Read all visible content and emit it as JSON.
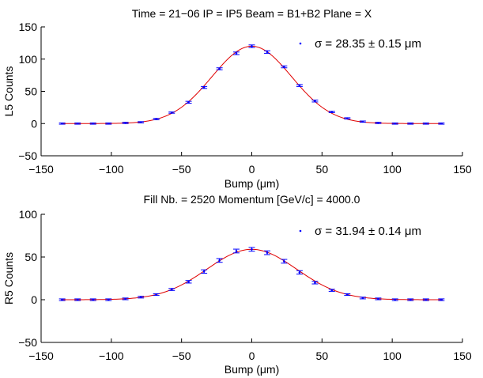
{
  "colors": {
    "data": "#0000ff",
    "fit": "#e00000",
    "axis": "#000000"
  },
  "chart_data": [
    {
      "type": "scatter",
      "title": "Time = 21−06  IP = IP5  Beam = B1+B2  Plane = X",
      "xlabel": "Bump (μm)",
      "ylabel": "L5 Counts",
      "xlim": [
        -150,
        150
      ],
      "ylim": [
        -50,
        150
      ],
      "xticks": [
        "−150",
        "−100",
        "−50",
        "0",
        "50",
        "100",
        "150"
      ],
      "yticks": [
        "−50",
        "0",
        "50",
        "100",
        "150"
      ],
      "legend": "σ  =  28.35 ± 0.15 μm",
      "legend_position": "top-right",
      "fit": {
        "amplitude": 120,
        "mean": 0,
        "sigma": 28.35,
        "offset": 0
      },
      "x": [
        -135,
        -124,
        -113,
        -102,
        -90,
        -79,
        -68,
        -57,
        -45,
        -34,
        -23,
        -11,
        0,
        11,
        23,
        34,
        45,
        57,
        68,
        79,
        90,
        102,
        113,
        124,
        135
      ],
      "y": [
        0,
        0,
        0,
        0,
        1,
        2,
        7,
        17,
        33,
        56,
        85,
        109,
        120,
        111,
        88,
        59,
        35,
        18,
        8,
        3,
        1,
        0,
        0,
        0,
        0
      ],
      "err": [
        1,
        1,
        1,
        1,
        1,
        1,
        1,
        1,
        1.5,
        1.5,
        1.5,
        2,
        2,
        2,
        1.5,
        1.5,
        1.5,
        1,
        1,
        1,
        1,
        1,
        1,
        1,
        1
      ]
    },
    {
      "type": "scatter",
      "title": "Fill Nb. = 2520  Momentum [GeV/c] = 4000.0",
      "xlabel": "Bump (μm)",
      "ylabel": "R5 Counts",
      "xlim": [
        -150,
        150
      ],
      "ylim": [
        -50,
        100
      ],
      "xticks": [
        "−150",
        "−100",
        "−50",
        "0",
        "50",
        "100",
        "150"
      ],
      "yticks": [
        "−50",
        "0",
        "50",
        "100"
      ],
      "legend": "σ  =  31.94 ± 0.14 μm",
      "legend_position": "top-right",
      "fit": {
        "amplitude": 59,
        "mean": 0,
        "sigma": 31.94,
        "offset": 0
      },
      "x": [
        -135,
        -124,
        -113,
        -102,
        -90,
        -79,
        -68,
        -57,
        -45,
        -34,
        -23,
        -11,
        0,
        11,
        23,
        34,
        45,
        57,
        68,
        79,
        90,
        102,
        113,
        124,
        135
      ],
      "y": [
        0,
        0,
        0,
        0,
        1,
        3,
        6,
        12,
        21,
        33,
        46,
        57,
        59,
        55,
        45,
        32,
        20,
        11,
        6,
        2,
        1,
        0,
        0,
        0,
        0
      ],
      "err": [
        1,
        1,
        1,
        1,
        1,
        1,
        1,
        1.2,
        1.5,
        2,
        2.2,
        2.2,
        2.2,
        2.2,
        2.2,
        2,
        1.5,
        1.2,
        1,
        1,
        1,
        1,
        1,
        1,
        1
      ]
    }
  ]
}
